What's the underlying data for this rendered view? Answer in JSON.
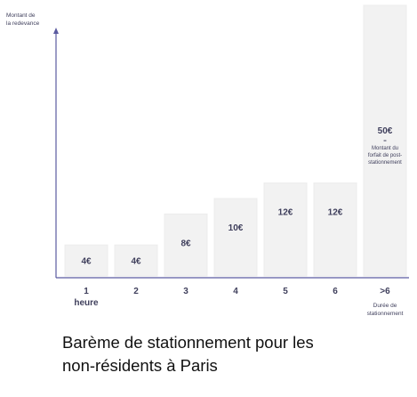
{
  "chart_data": {
    "type": "bar",
    "categories": [
      "1",
      "2",
      "3",
      "4",
      "5",
      "6",
      ">6"
    ],
    "category_sublabels": [
      "heure",
      "",
      "",
      "",
      "",
      "",
      ""
    ],
    "values": [
      4,
      4,
      8,
      10,
      12,
      12,
      50
    ],
    "value_labels": [
      "4€",
      "4€",
      "8€",
      "10€",
      "12€",
      "12€",
      "50€"
    ],
    "ylabel": [
      "Montant de",
      "la redevance"
    ],
    "xlabel": [
      "Durée de",
      "stationnement"
    ],
    "last_bar_annotation": [
      "=",
      "Montant du",
      "forfait de post-",
      "stationnement"
    ],
    "last_bar_full_height": true
  },
  "caption": {
    "line1": "Barème de stationnement pour les",
    "line2": "non-résidents à Paris"
  },
  "colors": {
    "bar_fill": "#f2f2f2",
    "axis": "#5a5aa0",
    "label_text": "#3f3f5c"
  }
}
